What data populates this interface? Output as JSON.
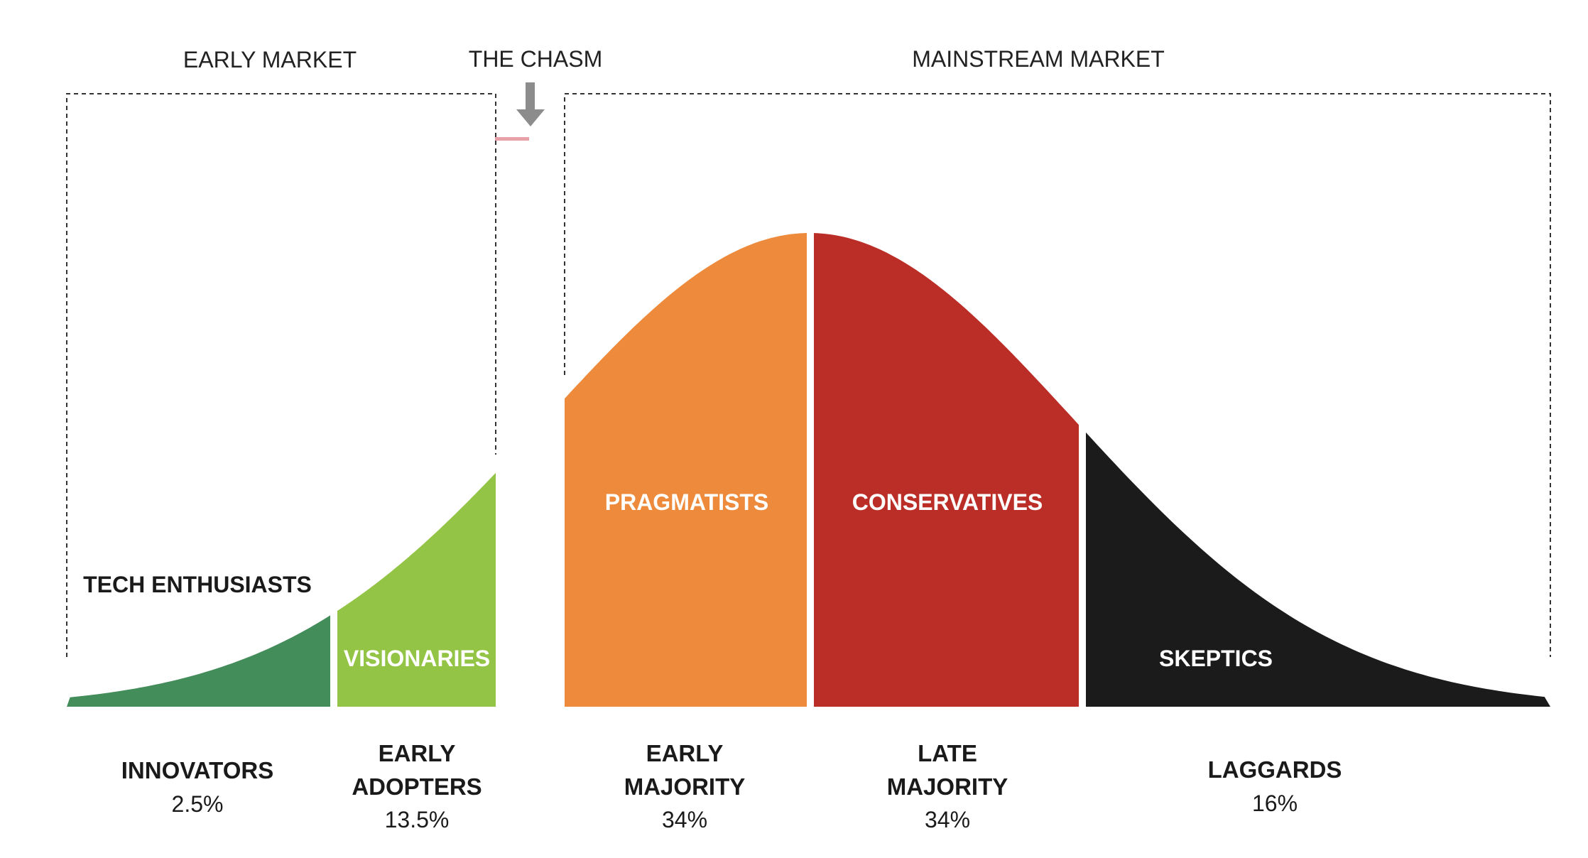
{
  "markets": {
    "early": "EARLY MARKET",
    "chasm": "THE CHASM",
    "mainstream": "MAINSTREAM MARKET"
  },
  "segments": [
    {
      "id": "innovators",
      "label": "TECH ENTHUSIASTS",
      "name_lines": [
        "INNOVATORS"
      ],
      "percent": "2.5%",
      "color": "#438D5A"
    },
    {
      "id": "early-adopters",
      "label": "VISIONARIES",
      "name_lines": [
        "EARLY",
        "ADOPTERS"
      ],
      "percent": "13.5%",
      "color": "#93C445"
    },
    {
      "id": "early-majority",
      "label": "PRAGMATISTS",
      "name_lines": [
        "EARLY",
        "MAJORITY"
      ],
      "percent": "34%",
      "color": "#EE8A3B"
    },
    {
      "id": "late-majority",
      "label": "CONSERVATIVES",
      "name_lines": [
        "LATE",
        "MAJORITY"
      ],
      "percent": "34%",
      "color": "#BB2E27"
    },
    {
      "id": "laggards",
      "label": "SKEPTICS",
      "name_lines": [
        "LAGGARDS"
      ],
      "percent": "16%",
      "color": "#1B1B1B"
    }
  ],
  "accent_colors": {
    "chasm_arrow": "#8C8C8C",
    "chasm_marker": "#E8A0A8"
  }
}
